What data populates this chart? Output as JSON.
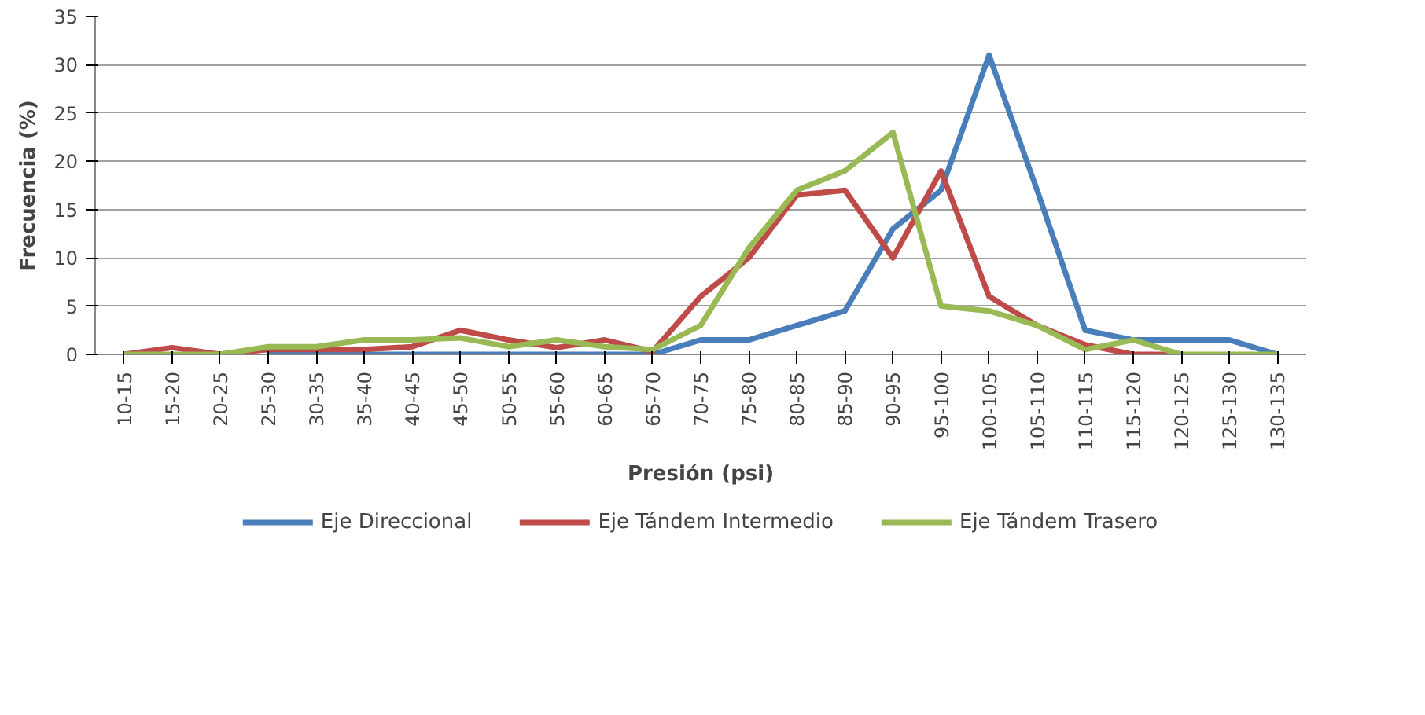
{
  "chart_data": {
    "type": "line",
    "xlabel": "Presión (psi)",
    "ylabel": "Frecuencia (%)",
    "categories": [
      "10-15",
      "15-20",
      "20-25",
      "25-30",
      "30-35",
      "35-40",
      "40-45",
      "45-50",
      "50-55",
      "55-60",
      "60-65",
      "65-70",
      "70-75",
      "75-80",
      "80-85",
      "85-90",
      "90-95",
      "95-100",
      "100-105",
      "105-110",
      "110-115",
      "115-120",
      "120-125",
      "125-130",
      "130-135"
    ],
    "series": [
      {
        "name": "Eje Direccional",
        "color": "#4a7ebb",
        "values": [
          null,
          null,
          null,
          0,
          0,
          0,
          0,
          0,
          0,
          0,
          0,
          0,
          1.5,
          1.5,
          3,
          4.5,
          13,
          17,
          31,
          17,
          2.5,
          1.5,
          1.5,
          1.5,
          0
        ]
      },
      {
        "name": "Eje Tándem Intermedio",
        "color": "#be4b48",
        "values": [
          0,
          0.7,
          0,
          0.5,
          0.5,
          0.5,
          0.8,
          2.5,
          1.5,
          0.7,
          1.5,
          0.3,
          6,
          10,
          16.5,
          17,
          10,
          19,
          6,
          3,
          1,
          0,
          0,
          null,
          null
        ]
      },
      {
        "name": "Eje Tándem Trasero",
        "color": "#98b954",
        "values": [
          0,
          0,
          0,
          0.8,
          0.8,
          1.5,
          1.5,
          1.7,
          0.8,
          1.5,
          0.8,
          0.5,
          3,
          11,
          17,
          19,
          23,
          5,
          4.5,
          3,
          0.5,
          1.5,
          0,
          0,
          0
        ]
      }
    ],
    "ylim": [
      0,
      35
    ],
    "yticks": [
      0,
      5,
      10,
      15,
      20,
      25,
      30,
      35
    ],
    "grid": "y",
    "legend": "bottom",
    "line_style": "solid",
    "marker": "none"
  }
}
